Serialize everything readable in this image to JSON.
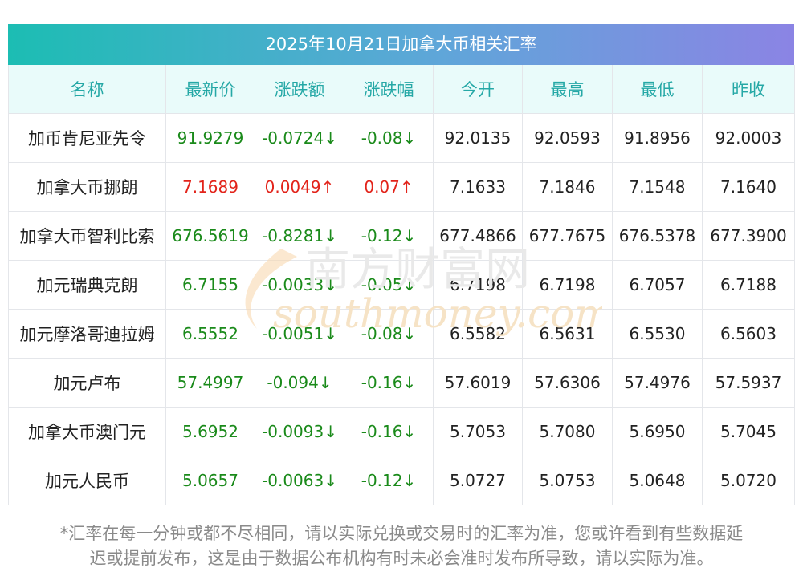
{
  "title": "2025年10月21日加拿大币相关汇率",
  "columns": [
    "名称",
    "最新价",
    "涨跌额",
    "涨跌幅",
    "今开",
    "最高",
    "最低",
    "昨收"
  ],
  "rows": [
    {
      "name": "加币肯尼亚先令",
      "latest": "91.9279",
      "change": "-0.0724↓",
      "pct": "-0.08↓",
      "open": "92.0135",
      "high": "92.0593",
      "low": "91.8956",
      "prev": "92.0003",
      "trend": "down"
    },
    {
      "name": "加拿大币挪朗",
      "latest": "7.1689",
      "change": "0.0049↑",
      "pct": "0.07↑",
      "open": "7.1633",
      "high": "7.1846",
      "low": "7.1548",
      "prev": "7.1640",
      "trend": "up"
    },
    {
      "name": "加拿大币智利比索",
      "latest": "676.5619",
      "change": "-0.8281↓",
      "pct": "-0.12↓",
      "open": "677.4866",
      "high": "677.7675",
      "low": "676.5378",
      "prev": "677.3900",
      "trend": "down"
    },
    {
      "name": "加元瑞典克朗",
      "latest": "6.7155",
      "change": "-0.0033↓",
      "pct": "-0.05↓",
      "open": "6.7198",
      "high": "6.7198",
      "low": "6.7057",
      "prev": "6.7188",
      "trend": "down"
    },
    {
      "name": "加元摩洛哥迪拉姆",
      "latest": "6.5552",
      "change": "-0.0051↓",
      "pct": "-0.08↓",
      "open": "6.5582",
      "high": "6.5631",
      "low": "6.5530",
      "prev": "6.5603",
      "trend": "down"
    },
    {
      "name": "加元卢布",
      "latest": "57.4997",
      "change": "-0.094↓",
      "pct": "-0.16↓",
      "open": "57.6019",
      "high": "57.6306",
      "low": "57.4976",
      "prev": "57.5937",
      "trend": "down"
    },
    {
      "name": "加拿大币澳门元",
      "latest": "5.6952",
      "change": "-0.0093↓",
      "pct": "-0.16↓",
      "open": "5.7053",
      "high": "5.7080",
      "low": "5.6950",
      "prev": "5.7045",
      "trend": "down"
    },
    {
      "name": "加元人民币",
      "latest": "5.0657",
      "change": "-0.0063↓",
      "pct": "-0.12↓",
      "open": "5.0727",
      "high": "5.0753",
      "low": "5.0648",
      "prev": "5.0720",
      "trend": "down"
    }
  ],
  "footnote_line1": "*汇率在每一分钟或都不尽相同，请以实际兑换或交易时的汇率为准，您或许看到有些数据延",
  "footnote_line2": "迟或提前发布，这是由于数据公布机构有时未必会准时发布所导致，请以实际为准。",
  "watermark": {
    "cn": "南方财富网",
    "en": "southmoney.com"
  },
  "colors": {
    "header_text": "#25a8a6",
    "header_bg": "#e9fbfa",
    "down": "#1a8a1a",
    "up": "#e2231a",
    "title_gradient_start": "#1cbdb3",
    "title_gradient_end": "#8b84e4"
  }
}
